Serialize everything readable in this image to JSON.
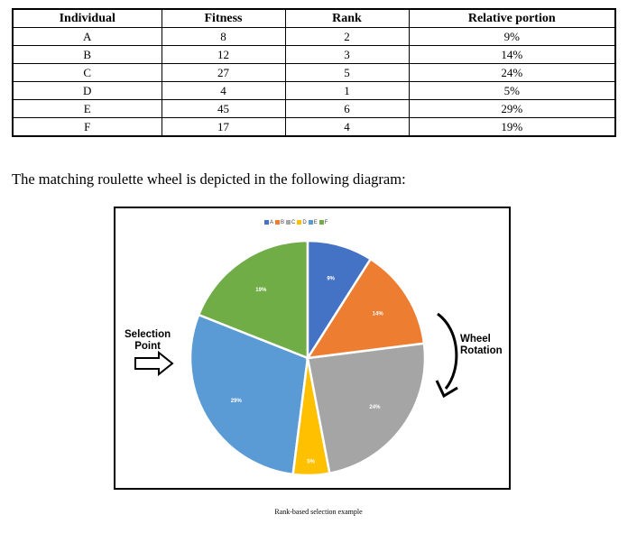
{
  "table": {
    "headers": [
      "Individual",
      "Fitness",
      "Rank",
      "Relative portion"
    ],
    "rows": [
      [
        "A",
        "8",
        "2",
        "9%"
      ],
      [
        "B",
        "12",
        "3",
        "14%"
      ],
      [
        "C",
        "27",
        "5",
        "24%"
      ],
      [
        "D",
        "4",
        "1",
        "5%"
      ],
      [
        "E",
        "45",
        "6",
        "29%"
      ],
      [
        "F",
        "17",
        "4",
        "19%"
      ]
    ]
  },
  "sentence": "The matching roulette wheel is depicted in the following diagram:",
  "figure": {
    "selection_label": [
      "Selection",
      "Point"
    ],
    "rotation_label": [
      "Wheel",
      "Rotation"
    ],
    "caption": "Rank-based selection example"
  },
  "chart_data": {
    "type": "pie",
    "legend": [
      "A",
      "B",
      "C",
      "D",
      "E",
      "F"
    ],
    "legend_placement": "top",
    "slices": [
      {
        "name": "A",
        "value": 9,
        "label": "9%",
        "color": "#4472C4"
      },
      {
        "name": "B",
        "value": 14,
        "label": "14%",
        "color": "#ED7D31"
      },
      {
        "name": "C",
        "value": 24,
        "label": "24%",
        "color": "#A5A5A5"
      },
      {
        "name": "D",
        "value": 5,
        "label": "5%",
        "color": "#FFC000"
      },
      {
        "name": "E",
        "value": 29,
        "label": "29%",
        "color": "#5B9BD5"
      },
      {
        "name": "F",
        "value": 19,
        "label": "19%",
        "color": "#70AD47"
      }
    ]
  }
}
